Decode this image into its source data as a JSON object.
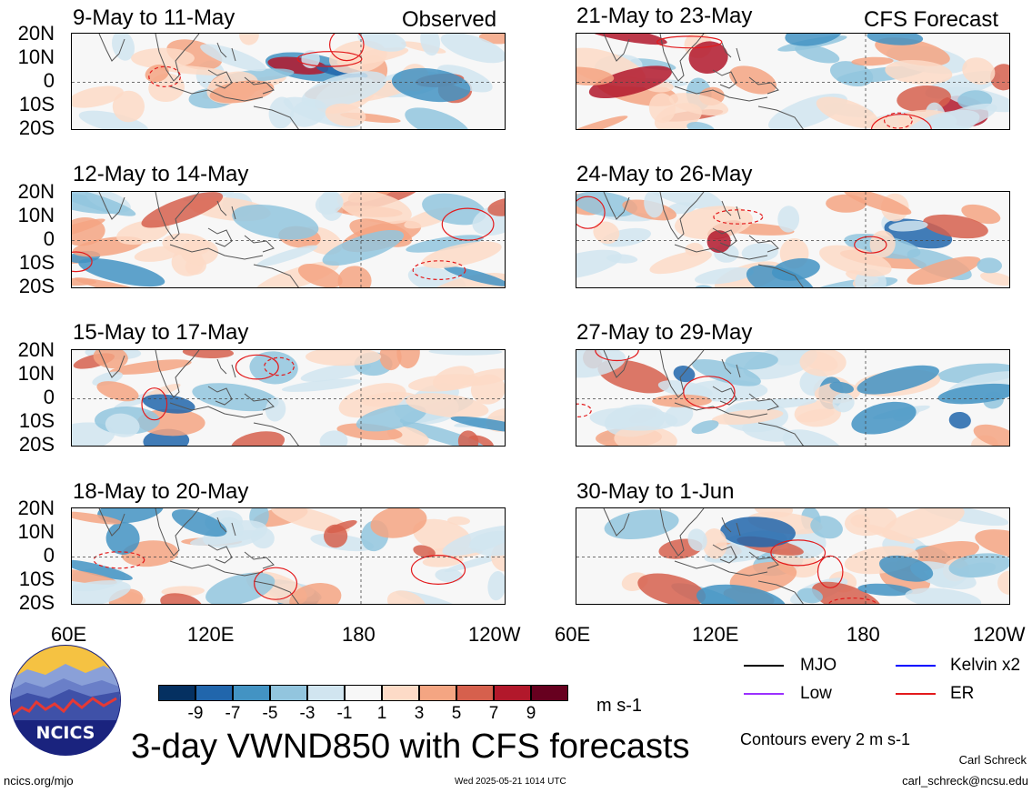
{
  "header_left": "Observed",
  "header_right": "CFS Forecast",
  "panels": [
    {
      "title": "9-May to 11-May"
    },
    {
      "title": "12-May to 14-May"
    },
    {
      "title": "15-May to 17-May"
    },
    {
      "title": "18-May to 20-May"
    },
    {
      "title": "21-May to 23-May"
    },
    {
      "title": "24-May to 26-May"
    },
    {
      "title": "27-May to 29-May"
    },
    {
      "title": "30-May to 1-Jun"
    }
  ],
  "y_ticks": [
    "20N",
    "10N",
    "0",
    "10S",
    "20S"
  ],
  "x_ticks_left": [
    "60E",
    "120E",
    "180",
    "120W"
  ],
  "x_ticks_right": [
    "60E",
    "120E",
    "180",
    "120W"
  ],
  "colorbar": {
    "labels": [
      "-9",
      "-7",
      "-5",
      "-3",
      "-1",
      "1",
      "3",
      "5",
      "7",
      "9"
    ],
    "colors": [
      "#053061",
      "#2166ac",
      "#4393c3",
      "#92c5de",
      "#d1e5f0",
      "#f7f7f7",
      "#fddbc7",
      "#f4a582",
      "#d6604d",
      "#b2182b",
      "#67001f"
    ],
    "units": "m s-1"
  },
  "legend": {
    "items": [
      {
        "label": "MJO",
        "color": "#000000"
      },
      {
        "label": "Kelvin x2",
        "color": "#0000ff"
      },
      {
        "label": "Low",
        "color": "#9b30ff"
      },
      {
        "label": "ER",
        "color": "#e31a1c"
      }
    ],
    "contour_note": "Contours every 2 m s-1"
  },
  "logo_text": "NCICS",
  "main_title": "3-day VWND850 with CFS forecasts",
  "footer_left": "ncics.org/mjo",
  "footer_center": "Wed 2025-05-21 1014 UTC",
  "author_name": "Carl Schreck",
  "author_email": "carl_schreck@ncsu.edu",
  "chart_data": {
    "type": "heatmap",
    "variable": "3-day VWND850",
    "units": "m s-1",
    "x_range": [
      "60E",
      "120W"
    ],
    "y_range": [
      "20S",
      "20N"
    ],
    "contour_levels": [
      -9,
      -7,
      -5,
      -3,
      -1,
      1,
      3,
      5,
      7,
      9
    ],
    "periods_observed": [
      "9-May to 11-May",
      "12-May to 14-May",
      "15-May to 17-May",
      "18-May to 20-May"
    ],
    "periods_forecast": [
      "21-May to 23-May",
      "24-May to 26-May",
      "27-May to 29-May",
      "30-May to 1-Jun"
    ],
    "overlays": [
      "MJO",
      "Kelvin x2",
      "Low",
      "ER"
    ]
  }
}
